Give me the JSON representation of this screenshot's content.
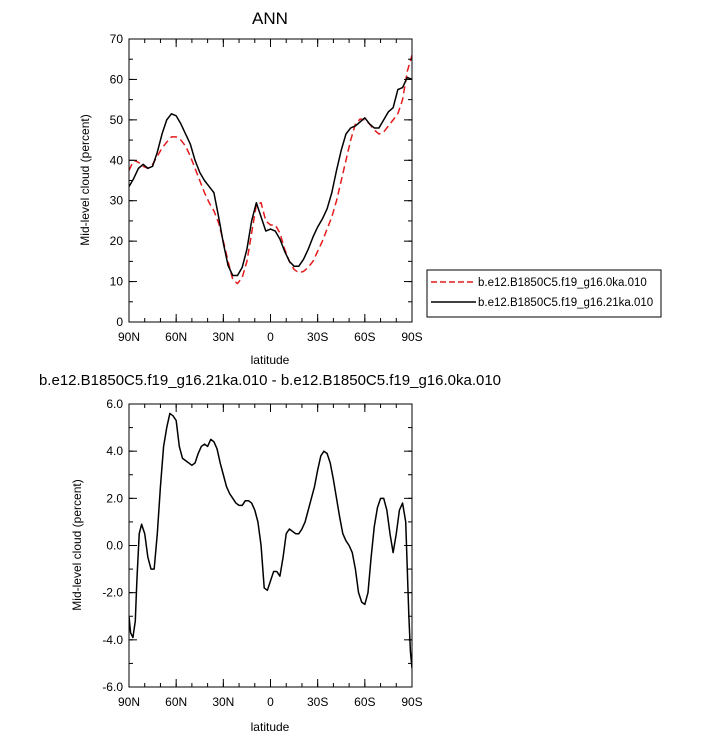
{
  "chart_data": [
    {
      "type": "line",
      "title": "ANN",
      "xlabel": "latitude",
      "ylabel": "Mid-level cloud (percent)",
      "xlim": [
        90,
        -90
      ],
      "ylim": [
        0,
        70
      ],
      "x_ticks": [
        90,
        60,
        30,
        0,
        -30,
        -60,
        -90
      ],
      "x_tick_labels": [
        "90N",
        "60N",
        "30N",
        "0",
        "30S",
        "60S",
        "90S"
      ],
      "y_ticks": [
        0,
        10,
        20,
        30,
        40,
        50,
        60,
        70
      ],
      "y_tick_labels": [
        "0",
        "10",
        "20",
        "30",
        "40",
        "50",
        "60",
        "70"
      ],
      "grid": false,
      "legend_position": "right",
      "series": [
        {
          "name": "b.e12.B1850C5.f19_g16.0ka.010",
          "color": "#e41a1c",
          "dash": "dashed",
          "x": [
            90,
            87,
            84,
            81,
            78,
            75,
            72,
            69,
            66,
            63,
            60,
            57,
            54,
            51,
            48,
            45,
            42,
            39,
            36,
            33,
            30,
            27,
            24,
            21,
            18,
            15,
            12,
            9,
            6,
            3,
            0,
            -3,
            -6,
            -9,
            -12,
            -15,
            -18,
            -21,
            -24,
            -27,
            -30,
            -33,
            -36,
            -39,
            -42,
            -45,
            -48,
            -51,
            -54,
            -57,
            -60,
            -63,
            -66,
            -69,
            -72,
            -75,
            -78,
            -81,
            -84,
            -87,
            -90
          ],
          "y": [
            37.5,
            40.0,
            39.5,
            38.5,
            38.0,
            39.0,
            41.0,
            43.0,
            44.5,
            45.8,
            45.8,
            45.0,
            43.5,
            41.0,
            38.0,
            35.0,
            32.0,
            29.5,
            27.5,
            24.5,
            20.0,
            15.0,
            10.5,
            9.5,
            11.0,
            15.0,
            22.0,
            29.0,
            29.5,
            25.0,
            24.0,
            24.0,
            22.0,
            18.0,
            15.0,
            13.0,
            12.2,
            12.5,
            13.5,
            15.0,
            17.5,
            20.0,
            23.0,
            26.0,
            30.0,
            35.0,
            40.0,
            45.0,
            49.0,
            50.2,
            50.0,
            49.0,
            47.5,
            46.5,
            47.0,
            48.5,
            50.0,
            51.5,
            55.0,
            62.0,
            66.0
          ]
        },
        {
          "name": "b.e12.B1850C5.f19_g16.21ka.010",
          "color": "#000000",
          "dash": "solid",
          "x": [
            90,
            87,
            84,
            81,
            78,
            75,
            72,
            69,
            66,
            63,
            60,
            57,
            54,
            51,
            48,
            45,
            42,
            39,
            36,
            33,
            30,
            27,
            24,
            21,
            18,
            15,
            12,
            9,
            6,
            3,
            0,
            -3,
            -6,
            -9,
            -12,
            -15,
            -18,
            -21,
            -24,
            -27,
            -30,
            -33,
            -36,
            -39,
            -42,
            -45,
            -48,
            -51,
            -54,
            -57,
            -60,
            -63,
            -66,
            -69,
            -72,
            -75,
            -78,
            -81,
            -84,
            -87,
            -90
          ],
          "y": [
            33.5,
            35.5,
            38.0,
            39.0,
            38.0,
            38.5,
            42.0,
            46.5,
            50.0,
            51.5,
            51.0,
            49.0,
            46.5,
            44.0,
            40.0,
            37.0,
            35.0,
            33.5,
            32.0,
            26.0,
            19.5,
            14.0,
            11.5,
            11.5,
            13.5,
            18.0,
            25.0,
            29.5,
            26.0,
            22.5,
            23.0,
            22.5,
            20.5,
            17.5,
            15.0,
            13.8,
            13.8,
            15.5,
            18.0,
            21.0,
            23.5,
            25.5,
            28.0,
            32.0,
            37.5,
            42.5,
            46.5,
            48.0,
            48.5,
            49.5,
            50.5,
            49.0,
            48.0,
            48.0,
            50.0,
            52.0,
            53.0,
            57.5,
            58.0,
            60.5,
            60.0
          ]
        }
      ]
    },
    {
      "type": "line",
      "title": "b.e12.B1850C5.f19_g16.21ka.010 - b.e12.B1850C5.f19_g16.0ka.010",
      "xlabel": "latitude",
      "ylabel": "Mid-level cloud (percent)",
      "xlim": [
        90,
        -90
      ],
      "ylim": [
        -6,
        6
      ],
      "x_ticks": [
        90,
        60,
        30,
        0,
        -30,
        -60,
        -90
      ],
      "x_tick_labels": [
        "90N",
        "60N",
        "30N",
        "0",
        "30S",
        "60S",
        "90S"
      ],
      "y_ticks": [
        -6,
        -4,
        -2,
        0,
        2,
        4,
        6
      ],
      "y_tick_labels": [
        "-6.0",
        "-4.0",
        "-2.0",
        "0.0",
        "2.0",
        "4.0",
        "6.0"
      ],
      "grid": false,
      "series": [
        {
          "color": "#000000",
          "dash": "solid",
          "x": [
            90,
            89,
            87.5,
            86,
            85,
            83.5,
            82,
            80,
            78,
            76,
            74,
            72,
            70,
            68,
            66,
            64,
            62,
            60,
            58,
            56,
            54,
            52,
            50,
            48,
            46,
            44,
            42,
            40,
            38,
            36,
            34,
            32,
            30,
            28,
            26,
            24,
            22,
            20,
            18,
            16,
            14,
            12,
            10,
            8,
            6,
            4,
            2,
            0,
            -2,
            -4,
            -6,
            -8,
            -10,
            -12,
            -14,
            -16,
            -18,
            -20,
            -22,
            -24,
            -26,
            -28,
            -30,
            -32,
            -34,
            -36,
            -38,
            -40,
            -42,
            -44,
            -46,
            -48,
            -50,
            -52,
            -54,
            -56,
            -58,
            -60,
            -62,
            -64,
            -66,
            -68,
            -70,
            -72,
            -74,
            -76,
            -78,
            -80,
            -82,
            -84,
            -86,
            -88,
            -89,
            -90
          ],
          "y": [
            -3.0,
            -3.7,
            -3.9,
            -3.2,
            -1.5,
            0.5,
            0.9,
            0.5,
            -0.5,
            -1.0,
            -1.0,
            0.5,
            2.5,
            4.2,
            5.0,
            5.6,
            5.5,
            5.3,
            4.2,
            3.7,
            3.6,
            3.5,
            3.4,
            3.5,
            3.9,
            4.2,
            4.3,
            4.2,
            4.5,
            4.4,
            4.1,
            3.5,
            3.0,
            2.5,
            2.2,
            2.0,
            1.8,
            1.7,
            1.7,
            1.9,
            1.9,
            1.8,
            1.5,
            1.0,
            0.0,
            -1.8,
            -1.9,
            -1.5,
            -1.1,
            -1.1,
            -1.3,
            -0.5,
            0.5,
            0.7,
            0.6,
            0.5,
            0.5,
            0.7,
            1.0,
            1.5,
            2.0,
            2.5,
            3.2,
            3.8,
            4.0,
            3.9,
            3.5,
            2.8,
            2.0,
            1.2,
            0.5,
            0.2,
            0.0,
            -0.3,
            -1.0,
            -2.0,
            -2.4,
            -2.5,
            -2.0,
            -0.5,
            0.8,
            1.6,
            2.0,
            2.0,
            1.5,
            0.5,
            -0.3,
            0.5,
            1.5,
            1.8,
            1.0,
            -3.0,
            -4.5,
            -5.2
          ]
        }
      ]
    }
  ]
}
